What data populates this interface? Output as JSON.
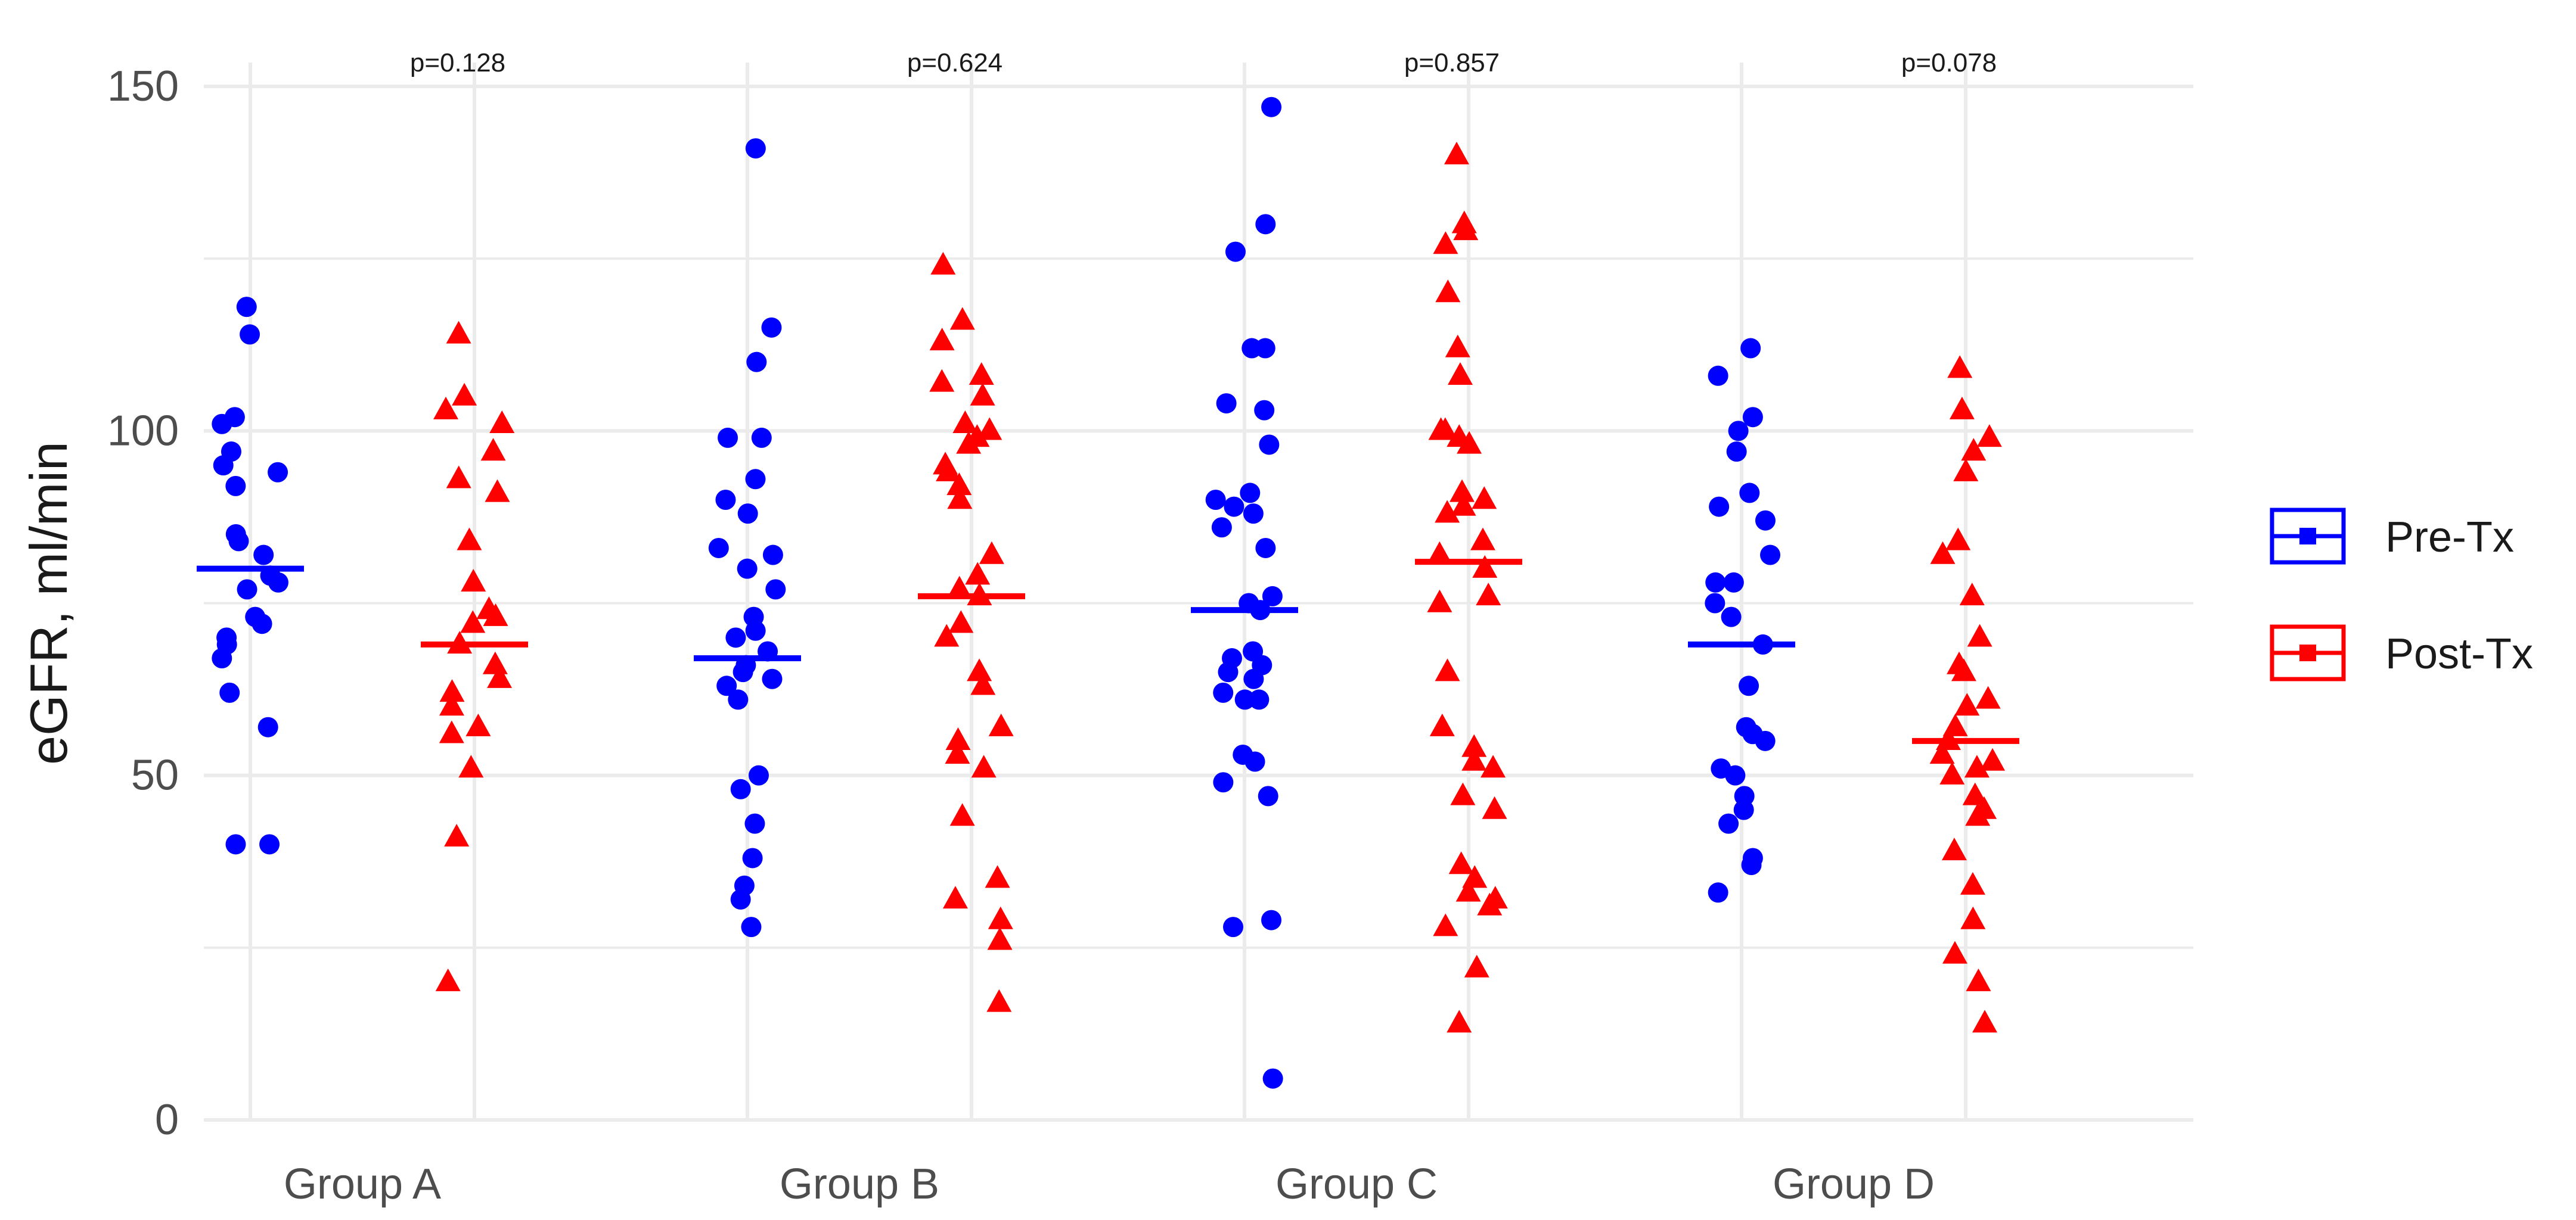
{
  "chart_data": {
    "type": "scatter",
    "ylabel": "eGFR, ml/min",
    "xlabel": "",
    "ylim": [
      0,
      150
    ],
    "yticks": [
      0,
      50,
      100,
      150
    ],
    "categories": [
      "Group A",
      "Group B",
      "Group C",
      "Group D"
    ],
    "grid": true,
    "legend_position": "right",
    "series": [
      {
        "name": "Pre-Tx",
        "color": "#0000ff",
        "marker": "circle",
        "means": [
          80,
          67,
          74,
          69
        ],
        "values": [
          [
            118,
            114,
            102,
            101,
            97,
            95,
            94,
            92,
            85,
            84,
            82,
            79,
            78,
            77,
            73,
            72,
            70,
            69,
            67,
            62,
            57,
            40,
            40
          ],
          [
            141,
            115,
            110,
            99,
            99,
            93,
            90,
            88,
            83,
            82,
            80,
            77,
            73,
            71,
            70,
            68,
            66,
            65,
            64,
            63,
            61,
            50,
            48,
            43,
            38,
            34,
            32,
            28
          ],
          [
            147,
            130,
            126,
            112,
            112,
            104,
            103,
            98,
            91,
            90,
            89,
            88,
            86,
            83,
            76,
            75,
            74,
            68,
            67,
            66,
            65,
            64,
            62,
            61,
            61,
            53,
            52,
            49,
            47,
            29,
            28,
            6
          ],
          [
            112,
            108,
            102,
            100,
            97,
            91,
            89,
            87,
            82,
            78,
            78,
            75,
            73,
            69,
            63,
            57,
            56,
            55,
            51,
            50,
            47,
            45,
            43,
            38,
            37,
            33
          ]
        ]
      },
      {
        "name": "Post-Tx",
        "color": "#ff0000",
        "marker": "triangle",
        "means": [
          69,
          76,
          81,
          55
        ],
        "values": [
          [
            114,
            105,
            103,
            101,
            97,
            93,
            91,
            84,
            78,
            74,
            73,
            72,
            69,
            66,
            64,
            62,
            60,
            57,
            56,
            51,
            41,
            20
          ],
          [
            124,
            116,
            113,
            108,
            107,
            105,
            101,
            100,
            99,
            98,
            95,
            94,
            92,
            90,
            82,
            79,
            77,
            76,
            72,
            70,
            65,
            63,
            57,
            55,
            53,
            51,
            44,
            35,
            32,
            29,
            26,
            17
          ],
          [
            140,
            130,
            129,
            127,
            120,
            112,
            108,
            100,
            100,
            99,
            98,
            91,
            90,
            89,
            88,
            84,
            82,
            80,
            76,
            75,
            65,
            57,
            54,
            52,
            51,
            47,
            45,
            37,
            35,
            33,
            32,
            31,
            28,
            22,
            14
          ],
          [
            109,
            103,
            99,
            97,
            94,
            84,
            82,
            76,
            70,
            66,
            65,
            61,
            60,
            57,
            55,
            53,
            52,
            51,
            50,
            47,
            45,
            44,
            39,
            34,
            29,
            24,
            20,
            14
          ]
        ]
      }
    ],
    "annotations": [
      "p=0.128",
      "p=0.624",
      "p=0.857",
      "p=0.078"
    ]
  },
  "colors": {
    "grid": "#ebebeb",
    "tick_text": "#4d4d4d",
    "title_text": "#1a1a1a"
  }
}
